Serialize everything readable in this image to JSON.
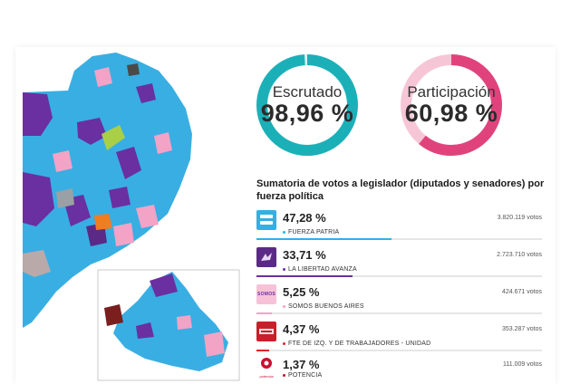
{
  "gauges": {
    "escrutado": {
      "label": "Escrutado",
      "value": "98,96 %",
      "fraction": 0.9896,
      "color": "#1bb0b8",
      "track": "#d7f0f2"
    },
    "participacion": {
      "label": "Participación",
      "value": "60,98 %",
      "fraction": 0.6098,
      "color": "#e0437c",
      "track": "#f6c6d7"
    }
  },
  "summary": {
    "title": "Sumatoria de votos a legislador (diputados y senadores) por fuerza política"
  },
  "parties": [
    {
      "pct": "47,28 %",
      "share": 0.4728,
      "name": "FUERZA PATRIA",
      "votes": "3.820.119 votos",
      "color": "#34aee6",
      "logo_bg": "#34aee6",
      "logo_icon": "fuerza-patria-logo-icon"
    },
    {
      "pct": "33,71 %",
      "share": 0.3371,
      "name": "LA LIBERTAD AVANZA",
      "votes": "2.723.710 votos",
      "color": "#6a2fa0",
      "logo_bg": "#5b2a86",
      "logo_icon": "la-libertad-avanza-logo-icon"
    },
    {
      "pct": "5,25 %",
      "share": 0.0525,
      "name": "SOMOS BUENOS AIRES",
      "votes": "424.671 votos",
      "color": "#f2a3c6",
      "logo_bg": "#f7c2d8",
      "logo_icon": "somos-logo-icon",
      "logo_text": "SOMOS"
    },
    {
      "pct": "4,37 %",
      "share": 0.0437,
      "name": "FTE DE IZQ. Y DE TRABAJADORES - UNIDAD",
      "votes": "353.287 votos",
      "color": "#d9262e",
      "logo_bg": "#c8202a",
      "logo_icon": "fit-logo-icon"
    },
    {
      "pct": "1,37 %",
      "share": 0.0137,
      "name": "POTENCIA",
      "votes": "111.009 votos",
      "color": "#c8102e",
      "logo_bg": "#ffffff",
      "logo_icon": "potencia-logo-icon",
      "logo_text": "potencia"
    }
  ]
}
